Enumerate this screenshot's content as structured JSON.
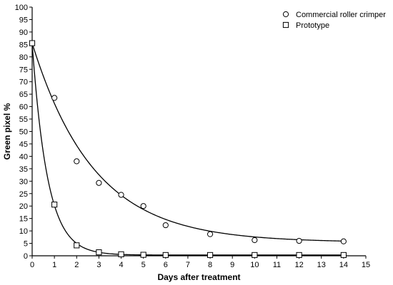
{
  "chart_data": {
    "type": "scatter",
    "title": "",
    "xlabel": "Days after treatment",
    "ylabel": "Green pixel %",
    "xlim": [
      0,
      15
    ],
    "ylim": [
      0,
      100
    ],
    "x_ticks": [
      0,
      1,
      2,
      3,
      4,
      5,
      6,
      7,
      8,
      9,
      10,
      11,
      12,
      13,
      14,
      15
    ],
    "y_ticks": [
      0,
      5,
      10,
      15,
      20,
      25,
      30,
      35,
      40,
      45,
      50,
      55,
      60,
      65,
      70,
      75,
      80,
      85,
      90,
      95,
      100
    ],
    "grid": false,
    "legend_position": "top-right",
    "series": [
      {
        "name": "Commercial roller crimper",
        "marker": "circle",
        "x": [
          0,
          1,
          2,
          3,
          4,
          5,
          6,
          8,
          10,
          12,
          14
        ],
        "y": [
          85.5,
          63.5,
          38,
          29.3,
          24.5,
          20,
          12.3,
          8.7,
          6.3,
          6,
          5.8
        ],
        "fit": {
          "model": "exponential_decay",
          "y0": 85.5,
          "plateau": 5.4,
          "k": 0.36
        }
      },
      {
        "name": "Prototype",
        "marker": "square",
        "x": [
          0,
          1,
          2,
          3,
          4,
          5,
          6,
          8,
          10,
          12,
          14
        ],
        "y": [
          85.5,
          20.6,
          4.2,
          1.4,
          0.6,
          0.4,
          0.3,
          0.3,
          0.3,
          0.3,
          0.3
        ],
        "fit": {
          "model": "exponential_decay",
          "y0": 85.5,
          "plateau": 0.3,
          "k": 1.45
        }
      }
    ]
  }
}
